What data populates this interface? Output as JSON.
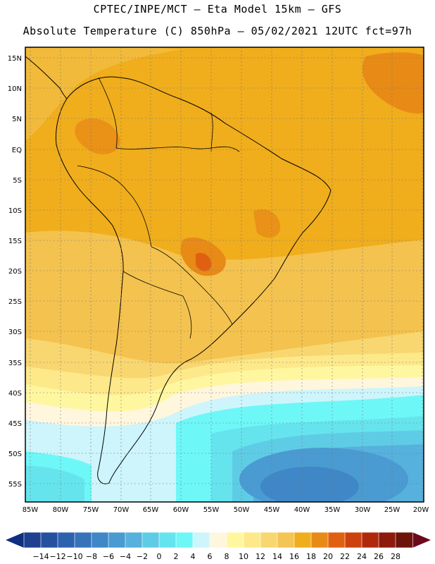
{
  "header": {
    "line1": "CPTEC/INPE/MCT –  Eta Model 15km – GFS",
    "line2": "Absolute Temperature (C) 850hPa – 05/02/2021 12UTC fct=97h"
  },
  "lat_labels": [
    "15N",
    "10N",
    "5N",
    "EQ",
    "5S",
    "10S",
    "15S",
    "20S",
    "25S",
    "30S",
    "35S",
    "40S",
    "45S",
    "50S",
    "55S"
  ],
  "lon_labels": [
    "85W",
    "80W",
    "75W",
    "70W",
    "65W",
    "60W",
    "55W",
    "50W",
    "45W",
    "40W",
    "35W",
    "30W",
    "25W",
    "20W"
  ],
  "colorbar": {
    "labels": [
      "-14",
      "-12",
      "-10",
      "-8",
      "-6",
      "-4",
      "-2",
      "0",
      "2",
      "4",
      "6",
      "8",
      "10",
      "12",
      "14",
      "16",
      "18",
      "20",
      "22",
      "24",
      "26",
      "28"
    ],
    "colors": [
      "#1f3f8f",
      "#25509f",
      "#2d62ae",
      "#3673ba",
      "#3f87c6",
      "#4a9bd1",
      "#56b1dd",
      "#5fcce6",
      "#66e4ee",
      "#6ef7f7",
      "#cdf5fb",
      "#fff6de",
      "#fff7a0",
      "#fde98a",
      "#f8d770",
      "#f4c454",
      "#f0ad1c",
      "#e88a16",
      "#e06012",
      "#cc420f",
      "#b0280c",
      "#8e1a0b",
      "#6d140a"
    ],
    "left_arrow_color": "#0f2e80",
    "right_arrow_color": "#6a0a1c"
  },
  "map": {
    "ocean_color": "#f0ad1c",
    "coast_color": "#000000",
    "grid_color": "#7a7a7a"
  }
}
